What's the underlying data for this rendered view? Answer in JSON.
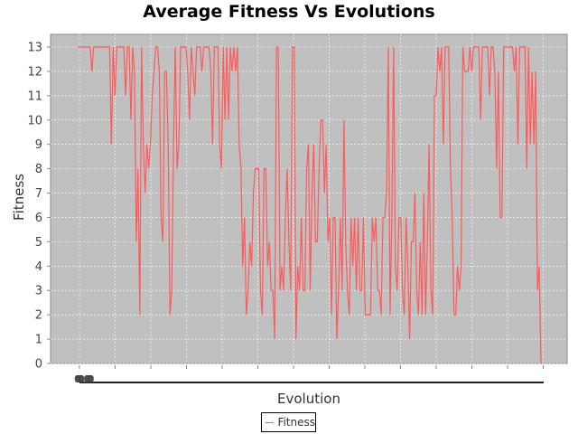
{
  "chart_data": {
    "type": "line",
    "title": "Average Fitness Vs Evolutions",
    "xlabel": "Evolution",
    "ylabel": "Fitness",
    "ylim": [
      0,
      13
    ],
    "yticks": [
      0,
      1,
      2,
      3,
      4,
      5,
      6,
      7,
      8,
      9,
      10,
      11,
      12,
      13
    ],
    "x_tick_label": "0.0",
    "grid": true,
    "legend_position": "bottom-center",
    "series": [
      {
        "name": "Fitness",
        "color": "#ff5a5a",
        "values": [
          13,
          13,
          13,
          13,
          13,
          13,
          13,
          13,
          12,
          13,
          13,
          13,
          13,
          13,
          13,
          13,
          13,
          13,
          13,
          9,
          13,
          11,
          13,
          13,
          13,
          13,
          13,
          11,
          13,
          13,
          10,
          13,
          12,
          5,
          8,
          2,
          13,
          9,
          7,
          9,
          8,
          9,
          11,
          12,
          13,
          13,
          12,
          6,
          5,
          12,
          12,
          9,
          2,
          3,
          9,
          13,
          8,
          9,
          13,
          13,
          13,
          13,
          12,
          10,
          13,
          12,
          11,
          13,
          13,
          13,
          12,
          13,
          13,
          13,
          13,
          12,
          9,
          13,
          13,
          13,
          9,
          8,
          13,
          10,
          13,
          10,
          13,
          12,
          13,
          12,
          13,
          9,
          8,
          4,
          6,
          2,
          3,
          5,
          4,
          7,
          8,
          8,
          8,
          3,
          2,
          8,
          8,
          4,
          5,
          3,
          3,
          1,
          13,
          13,
          3,
          4,
          3,
          6,
          8,
          5,
          3,
          13,
          13,
          1,
          4,
          3,
          6,
          3,
          3,
          8,
          9,
          3,
          7,
          9,
          5,
          5,
          8,
          10,
          10,
          7,
          9,
          5,
          6,
          2,
          6,
          6,
          1,
          3,
          6,
          3,
          10,
          5,
          3,
          2,
          6,
          4,
          6,
          3,
          6,
          3,
          3,
          6,
          2,
          2,
          2,
          2,
          6,
          5,
          6,
          3,
          3,
          2,
          6,
          6,
          7,
          13,
          2,
          6,
          13,
          4,
          3,
          6,
          6,
          3,
          2,
          6,
          4,
          1,
          5,
          5,
          7,
          3,
          2,
          5,
          2,
          7,
          2,
          5,
          9,
          3,
          2,
          11,
          11,
          13,
          12,
          13,
          9,
          13,
          13,
          13,
          8,
          6,
          2,
          2,
          4,
          3,
          4,
          13,
          12,
          12,
          12,
          13,
          12,
          13,
          13,
          13,
          13,
          10,
          13,
          13,
          13,
          13,
          11,
          13,
          13,
          12,
          8,
          12,
          6,
          6,
          13,
          13,
          13,
          13,
          13,
          13,
          12,
          13,
          9,
          13,
          13,
          13,
          13,
          8,
          13,
          9,
          12,
          9,
          12,
          3,
          4,
          0
        ]
      }
    ]
  }
}
